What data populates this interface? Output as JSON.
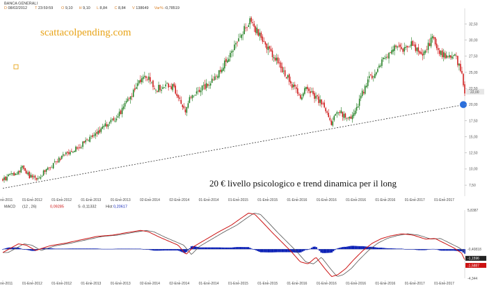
{
  "header": {
    "title": "BANCA GENERALI",
    "fields": [
      {
        "label": "D",
        "value": "08/02/2012",
        "color": "#d9822b"
      },
      {
        "label": "T",
        "value": "23:59:59",
        "color": "#d9822b"
      },
      {
        "label": "O",
        "value": "9,10",
        "color": "#d9822b"
      },
      {
        "label": "H",
        "value": "9,10",
        "color": "#d9822b"
      },
      {
        "label": "L",
        "value": "8,84",
        "color": "#d9822b"
      },
      {
        "label": "C",
        "value": "8,84",
        "color": "#d9822b"
      },
      {
        "label": "V",
        "value": "138649",
        "color": "#d9822b"
      },
      {
        "label": "Var%",
        "value": "-0,78519",
        "color": "#d9822b"
      }
    ]
  },
  "watermark": "scattacolpending.com",
  "annotation": "20 € livello psicologico e trend dinamica per il long",
  "colors": {
    "up_candle": "#1a7a1a",
    "down_candle": "#cc1111",
    "trendline": "#333333",
    "marker": "#2b6fdc",
    "macd_line": "#cc1111",
    "signal_line": "#555555",
    "histogram": "#0a1fb5",
    "watermark": "#e8a317",
    "last_price_bg": "#e6e6e6"
  },
  "chart_data": [
    {
      "type": "candlestick",
      "title": "BANCA GENERALI",
      "ylim": [
        6.0,
        34.5
      ],
      "y_ticks": [
        "7,50",
        "10,00",
        "12,50",
        "15,00",
        "17,50",
        "20,00",
        "22,50",
        "25,00",
        "27,50",
        "30,00",
        "32,50"
      ],
      "y_tick_values": [
        7.5,
        10,
        12.5,
        15,
        17.5,
        20,
        22.5,
        25,
        27.5,
        30,
        32.5
      ],
      "last_price_label": "22,00",
      "last_price": 22.0,
      "x_ticks": [
        "01-Ene-2011",
        "01-Ene-2012",
        "01-Ene-2012",
        "01-Ene-2013",
        "01-Ene-2013",
        "02-Ene-2014",
        "02-Ene-2014",
        "01-Ene-2014",
        "01-Ene-2015",
        "01-Ene-2015",
        "01-Ene-2016",
        "01-Ene-2016",
        "01-Ene-2016",
        "01-Ene-2016",
        "01-Ene-2017",
        "01-Ene-2017"
      ],
      "x_tick_positions": [
        0,
        0.086,
        0.172,
        0.258,
        0.344,
        0.43,
        0.516,
        0.602,
        0.688,
        0.774,
        0.86,
        0.946,
        1.032,
        1.118,
        1.204,
        1.29
      ],
      "price_path": [
        [
          0.0,
          8.4
        ],
        [
          0.1,
          9.6
        ],
        [
          0.13,
          10.3
        ],
        [
          0.17,
          8.9
        ],
        [
          0.21,
          8.4
        ],
        [
          0.28,
          9.8
        ],
        [
          0.35,
          11.2
        ],
        [
          0.42,
          12.6
        ],
        [
          0.48,
          13.3
        ],
        [
          0.55,
          14.6
        ],
        [
          0.62,
          16.0
        ],
        [
          0.68,
          17.2
        ],
        [
          0.74,
          18.3
        ],
        [
          0.79,
          20.3
        ],
        [
          0.84,
          22.2
        ],
        [
          0.9,
          24.6
        ],
        [
          0.93,
          24.0
        ],
        [
          0.98,
          22.4
        ],
        [
          1.02,
          22.8
        ],
        [
          1.06,
          23.2
        ],
        [
          1.1,
          22.3
        ],
        [
          1.14,
          20.2
        ],
        [
          1.16,
          18.8
        ],
        [
          1.19,
          20.6
        ],
        [
          1.24,
          22.2
        ],
        [
          1.3,
          22.9
        ],
        [
          1.36,
          24.4
        ],
        [
          1.42,
          26.5
        ],
        [
          1.47,
          28.3
        ],
        [
          1.52,
          30.6
        ],
        [
          1.56,
          32.6
        ],
        [
          1.59,
          33.4
        ],
        [
          1.61,
          31.8
        ],
        [
          1.64,
          30.8
        ],
        [
          1.68,
          29.4
        ],
        [
          1.72,
          27.6
        ],
        [
          1.76,
          26.4
        ],
        [
          1.79,
          24.8
        ],
        [
          1.83,
          23.8
        ],
        [
          1.86,
          22.6
        ],
        [
          1.9,
          20.8
        ],
        [
          1.93,
          22.4
        ],
        [
          1.98,
          21.4
        ],
        [
          2.04,
          20.2
        ],
        [
          2.08,
          18.3
        ],
        [
          2.1,
          17.1
        ],
        [
          2.14,
          19.3
        ],
        [
          2.18,
          18.2
        ],
        [
          2.21,
          17.6
        ],
        [
          2.25,
          18.7
        ],
        [
          2.29,
          21.4
        ],
        [
          2.33,
          23.5
        ],
        [
          2.36,
          24.7
        ],
        [
          2.4,
          25.8
        ],
        [
          2.44,
          27.2
        ],
        [
          2.48,
          28.7
        ],
        [
          2.52,
          29.3
        ],
        [
          2.56,
          28.6
        ],
        [
          2.6,
          29.4
        ],
        [
          2.64,
          28.8
        ],
        [
          2.68,
          28.1
        ],
        [
          2.72,
          29.3
        ],
        [
          2.75,
          30.6
        ],
        [
          2.78,
          28.6
        ],
        [
          2.81,
          27.6
        ],
        [
          2.84,
          27.3
        ],
        [
          2.87,
          27.5
        ],
        [
          2.9,
          27.0
        ],
        [
          2.93,
          25.2
        ],
        [
          2.95,
          22.0
        ]
      ],
      "trendline": {
        "x": [
          0.0,
          2.95
        ],
        "y": [
          7.0,
          20.0
        ]
      },
      "marker": {
        "x": 2.95,
        "y": 20.0
      }
    },
    {
      "type": "line",
      "title": "MACD",
      "params_label": "(12 , 26)",
      "values_header": [
        {
          "label": "",
          "value": "0,09285",
          "color": "#cc1111"
        },
        {
          "label": "S",
          "value": "-0,11332",
          "color": "#333333"
        },
        {
          "label": "Hist",
          "value": "0,20617",
          "color": "#0a1fb5"
        }
      ],
      "ylim": [
        -4.344,
        5.8387
      ],
      "y_ticks": [
        "5,8387",
        "-0,40818",
        "-1,1596",
        "-1,5887",
        "-4,344"
      ],
      "y_tick_values": [
        5.8387,
        -0.40818,
        -1.1596,
        -1.5887,
        -4.344
      ],
      "macd_path": [
        [
          0.0,
          -0.5
        ],
        [
          0.1,
          0.8
        ],
        [
          0.15,
          0.6
        ],
        [
          0.21,
          -0.2
        ],
        [
          0.3,
          0.5
        ],
        [
          0.4,
          0.9
        ],
        [
          0.5,
          1.4
        ],
        [
          0.6,
          1.9
        ],
        [
          0.7,
          2.1
        ],
        [
          0.8,
          2.5
        ],
        [
          0.88,
          2.8
        ],
        [
          0.93,
          2.6
        ],
        [
          1.0,
          1.8
        ],
        [
          1.05,
          1.3
        ],
        [
          1.12,
          0.6
        ],
        [
          1.17,
          -0.8
        ],
        [
          1.22,
          0.4
        ],
        [
          1.3,
          1.5
        ],
        [
          1.38,
          2.6
        ],
        [
          1.46,
          3.6
        ],
        [
          1.52,
          4.6
        ],
        [
          1.57,
          5.4
        ],
        [
          1.61,
          5.2
        ],
        [
          1.66,
          4.0
        ],
        [
          1.72,
          2.5
        ],
        [
          1.78,
          1.1
        ],
        [
          1.84,
          -0.3
        ],
        [
          1.9,
          -1.9
        ],
        [
          1.95,
          -2.2
        ],
        [
          2.0,
          -1.2
        ],
        [
          2.06,
          -3.0
        ],
        [
          2.1,
          -4.1
        ],
        [
          2.14,
          -3.8
        ],
        [
          2.19,
          -2.9
        ],
        [
          2.24,
          -1.6
        ],
        [
          2.3,
          -0.2
        ],
        [
          2.36,
          0.9
        ],
        [
          2.42,
          1.6
        ],
        [
          2.48,
          2.0
        ],
        [
          2.55,
          2.3
        ],
        [
          2.62,
          2.1
        ],
        [
          2.7,
          1.5
        ],
        [
          2.76,
          1.6
        ],
        [
          2.82,
          0.9
        ],
        [
          2.88,
          0.2
        ],
        [
          2.93,
          -0.6
        ],
        [
          2.95,
          -1.6
        ]
      ],
      "signal_lag": 0.035
    }
  ]
}
